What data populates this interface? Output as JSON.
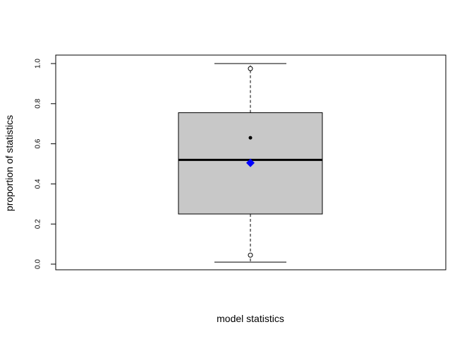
{
  "chart_data": {
    "type": "box",
    "xlabel": "model statistics",
    "ylabel": "proportion of statistics",
    "ylim": [
      0.0,
      1.0
    ],
    "y_ticks": [
      "0.0",
      "0.2",
      "0.4",
      "0.6",
      "0.8",
      "1.0"
    ],
    "grid": false,
    "legend": "none",
    "box": {
      "whisker_low": 0.01,
      "q1": 0.25,
      "median": 0.52,
      "q3": 0.755,
      "whisker_high": 1.0,
      "mean": 0.505
    },
    "points": [
      {
        "y": 0.975,
        "style": "open-circle"
      },
      {
        "y": 0.045,
        "style": "open-circle"
      },
      {
        "y": 0.63,
        "style": "filled-dot"
      }
    ],
    "colors": {
      "box_fill": "#c8c8c8",
      "median": "#000000",
      "mean_marker": "#0000ff",
      "axis": "#000000"
    }
  }
}
